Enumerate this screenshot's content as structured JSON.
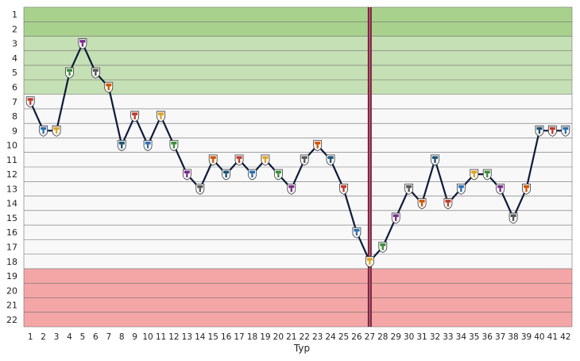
{
  "chart_data": {
    "type": "line",
    "xlabel": "Typ",
    "ylabel": "",
    "x": [
      1,
      2,
      3,
      4,
      5,
      6,
      7,
      8,
      9,
      10,
      11,
      12,
      13,
      14,
      15,
      16,
      17,
      18,
      19,
      20,
      21,
      22,
      23,
      24,
      25,
      26,
      27,
      28,
      29,
      30,
      31,
      32,
      33,
      34,
      35,
      36,
      37,
      38,
      39,
      40,
      41,
      42
    ],
    "series": [
      {
        "values": [
          7,
          9,
          9,
          5,
          3,
          5,
          6,
          10,
          8,
          10,
          8,
          10,
          12,
          13,
          11,
          12,
          11,
          12,
          11,
          12,
          13,
          11,
          10,
          11,
          13,
          16,
          18,
          17,
          15,
          13,
          14,
          11,
          14,
          13,
          12,
          12,
          13,
          15,
          13,
          9,
          9,
          9
        ]
      }
    ],
    "xlim": [
      1,
      42
    ],
    "ylim": [
      1,
      22
    ],
    "y_inverted": true,
    "x_ticks": [
      "1",
      "2",
      "3",
      "4",
      "5",
      "6",
      "7",
      "8",
      "9",
      "10",
      "11",
      "12",
      "13",
      "14",
      "15",
      "16",
      "17",
      "18",
      "19",
      "20",
      "21",
      "22",
      "23",
      "24",
      "25",
      "26",
      "27",
      "28",
      "29",
      "30",
      "31",
      "32",
      "33",
      "34",
      "35",
      "36",
      "37",
      "38",
      "39",
      "40",
      "41",
      "42"
    ],
    "y_ticks": [
      "1",
      "2",
      "3",
      "4",
      "5",
      "6",
      "7",
      "8",
      "9",
      "10",
      "11",
      "12",
      "13",
      "14",
      "15",
      "16",
      "17",
      "18",
      "19",
      "20",
      "21",
      "22"
    ],
    "bands": [
      {
        "from": 1,
        "to": 2,
        "color": "#a9d18e"
      },
      {
        "from": 3,
        "to": 6,
        "color": "#c5e0b4"
      },
      {
        "from": 7,
        "to": 18,
        "color": "#f8f8f8"
      },
      {
        "from": 19,
        "to": 22,
        "color": "#f4a6a6"
      }
    ],
    "marker_line_x": 27,
    "line_color": "#0d1a3a",
    "marker_line_color": "#7b1f3a",
    "grid": true
  }
}
